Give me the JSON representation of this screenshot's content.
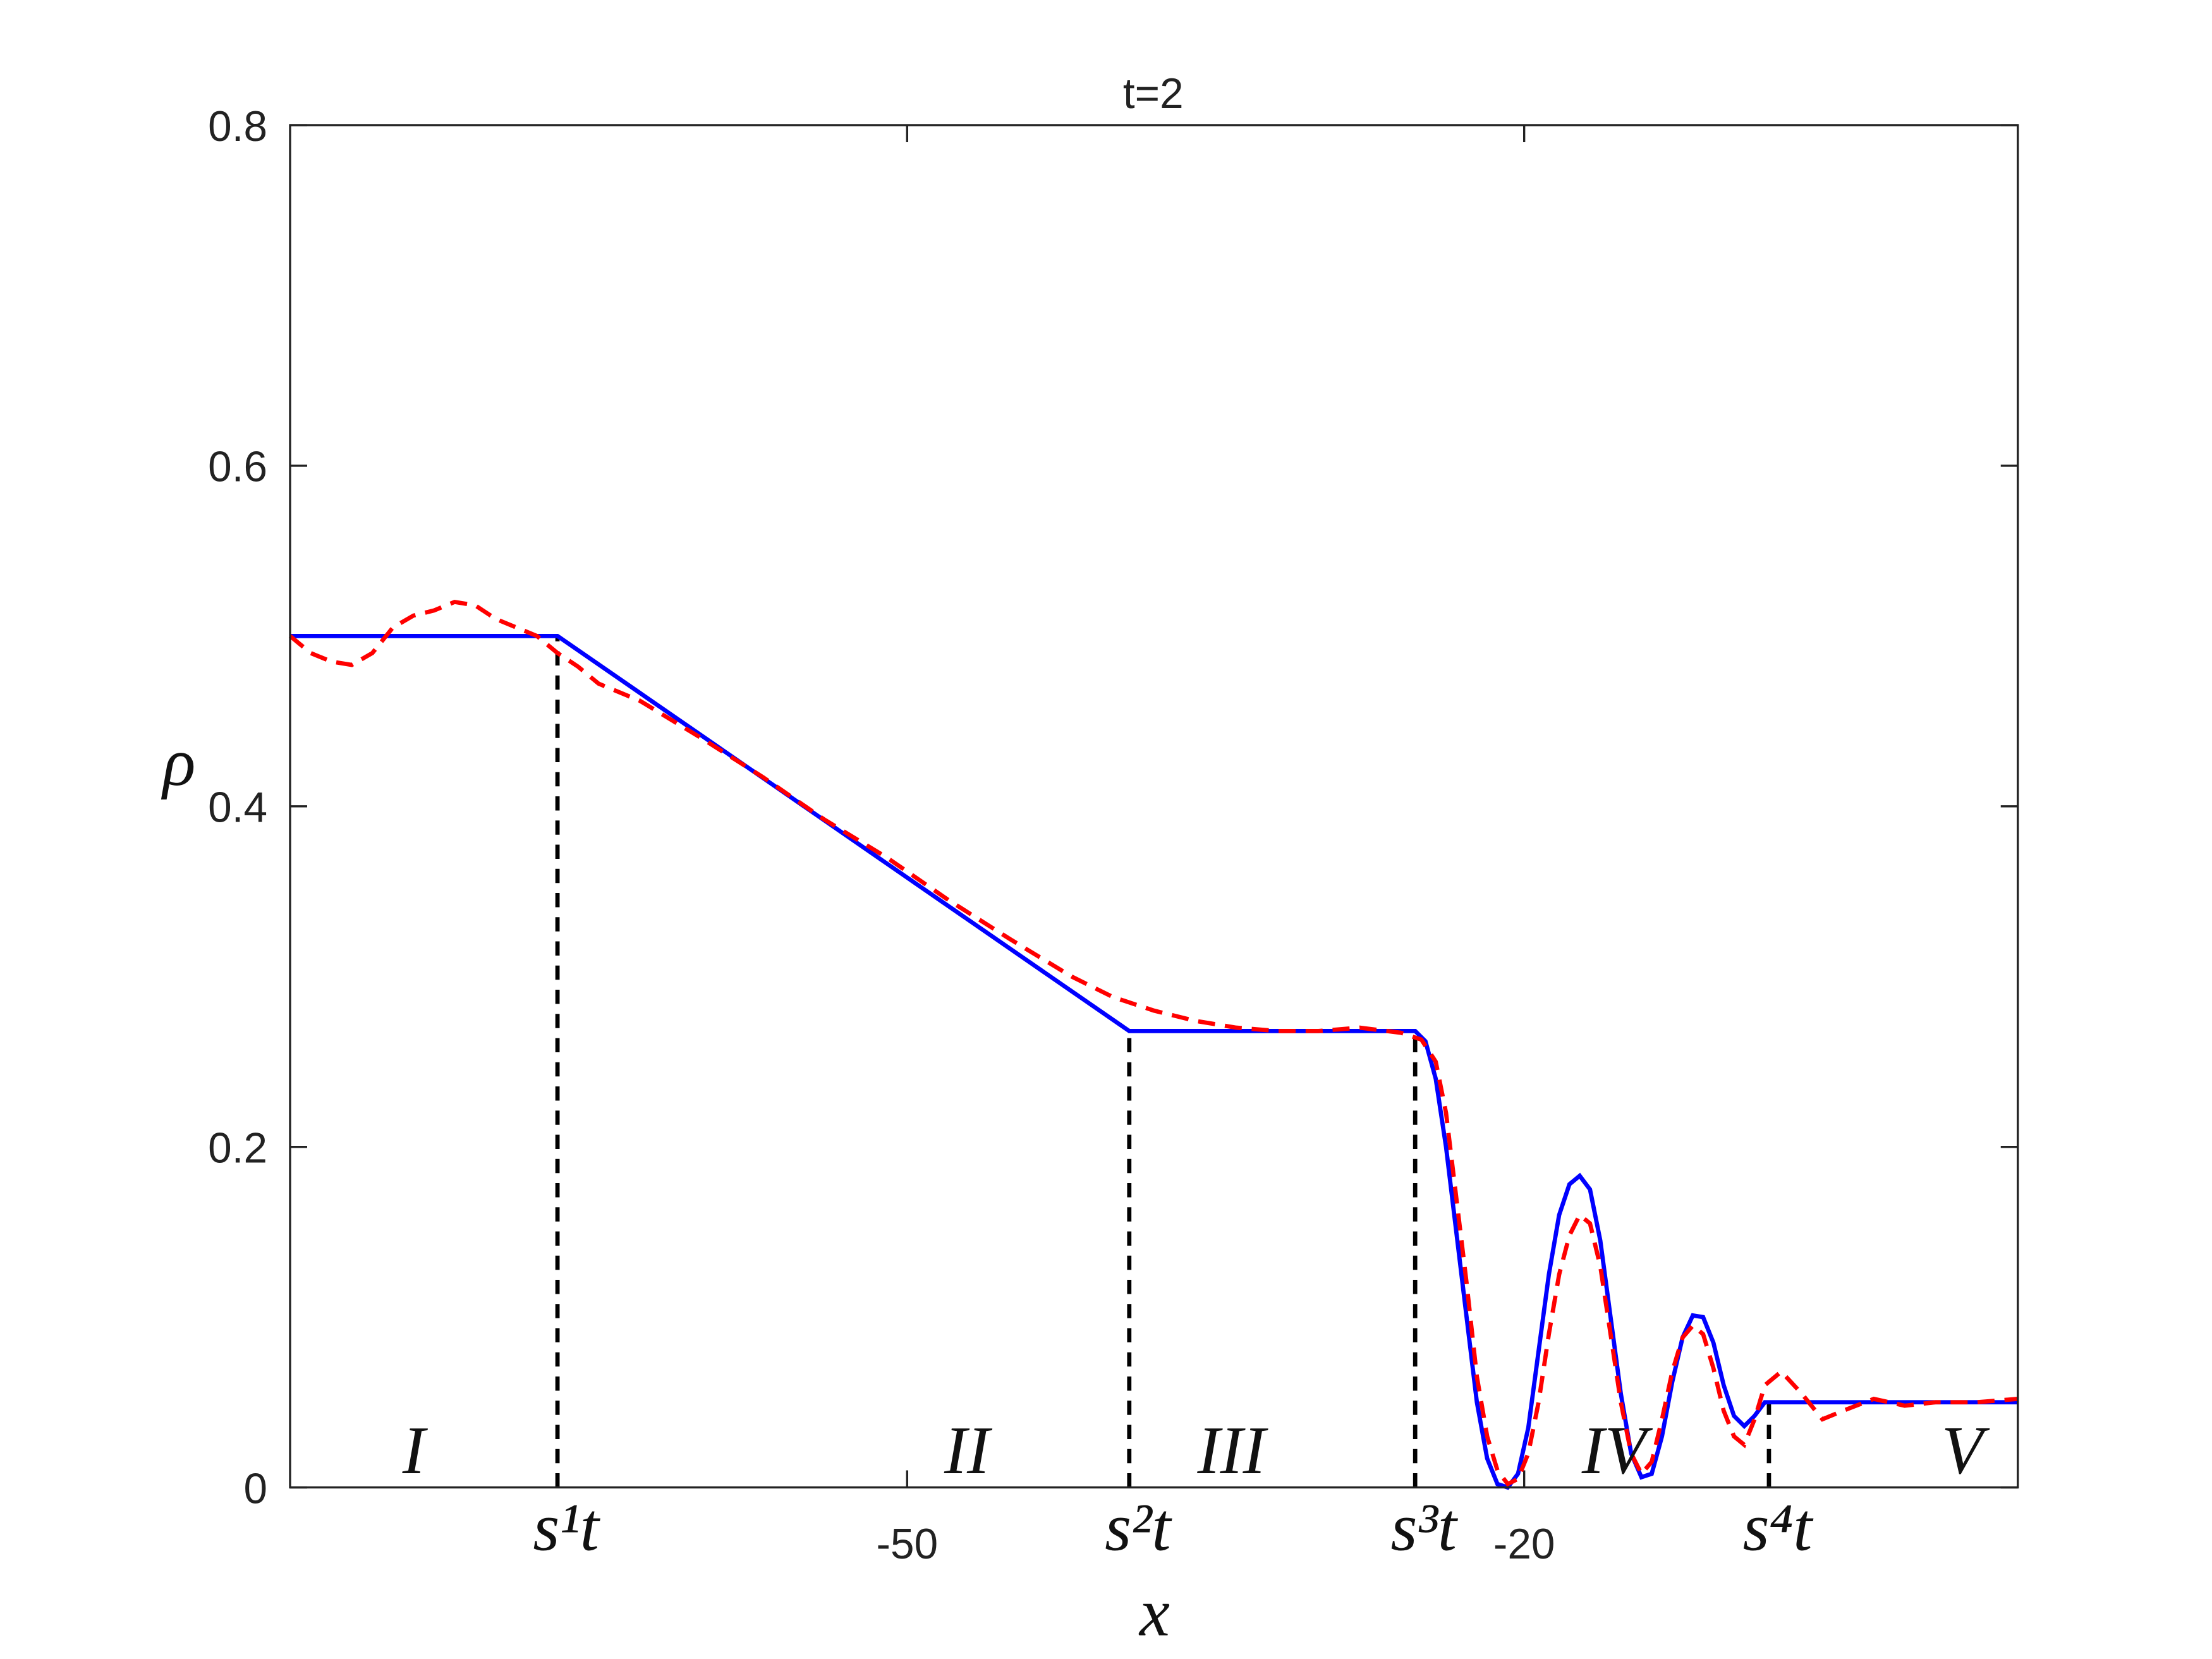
{
  "chart_data": {
    "type": "line",
    "title": "t=2",
    "xlabel": "x",
    "ylabel": "ρ",
    "xlim": [
      -80,
      4
    ],
    "ylim": [
      0,
      0.8
    ],
    "xticks": [
      -50,
      -20
    ],
    "yticks": [
      0,
      0.2,
      0.4,
      0.6,
      0.8
    ],
    "series": [
      {
        "color": "#0000ff",
        "style": "solid",
        "x": [
          -80,
          -67,
          -39.2,
          -25.3,
          -24.8,
          -24.3,
          -23.8,
          -23.3,
          -22.8,
          -22.3,
          -21.8,
          -21.3,
          -20.8,
          -20.3,
          -19.8,
          -19.3,
          -18.8,
          -18.3,
          -17.8,
          -17.3,
          -16.8,
          -16.3,
          -15.8,
          -15.3,
          -14.8,
          -14.3,
          -13.8,
          -13.3,
          -12.8,
          -12.3,
          -11.8,
          -11.3,
          -10.8,
          -10.3,
          -9.8,
          -9.3,
          -8.8,
          -8.3,
          4
        ],
        "values": [
          0.5,
          0.5,
          0.268,
          0.268,
          0.262,
          0.24,
          0.2,
          0.15,
          0.1,
          0.05,
          0.017,
          0.002,
          0.0,
          0.008,
          0.035,
          0.08,
          0.125,
          0.16,
          0.178,
          0.183,
          0.175,
          0.145,
          0.1,
          0.055,
          0.02,
          0.006,
          0.008,
          0.03,
          0.062,
          0.088,
          0.101,
          0.1,
          0.085,
          0.06,
          0.042,
          0.036,
          0.042,
          0.05,
          0.05
        ]
      },
      {
        "color": "#ff0000",
        "style": "dashed",
        "x": [
          -80,
          -79,
          -78,
          -77,
          -76,
          -75,
          -74,
          -73,
          -72,
          -71,
          -70,
          -69,
          -68,
          -67,
          -66,
          -65,
          -63,
          -60,
          -57,
          -54,
          -51,
          -48,
          -45,
          -42,
          -40,
          -38,
          -36,
          -34,
          -32,
          -30,
          -28,
          -26,
          -25,
          -24.3,
          -23.8,
          -23.3,
          -22.8,
          -22.3,
          -21.8,
          -21.3,
          -20.8,
          -20.3,
          -19.8,
          -19.3,
          -18.8,
          -18.3,
          -17.8,
          -17.3,
          -16.8,
          -16.3,
          -15.8,
          -15.3,
          -14.8,
          -14.3,
          -13.8,
          -13.3,
          -12.8,
          -12.3,
          -11.8,
          -11.3,
          -10.8,
          -10.3,
          -9.8,
          -9.3,
          -8.8,
          -8.3,
          -7.5,
          -6.5,
          -5.5,
          -4.5,
          -3,
          -1.5,
          0,
          2,
          4
        ],
        "values": [
          0.5,
          0.49,
          0.485,
          0.483,
          0.49,
          0.505,
          0.512,
          0.515,
          0.52,
          0.518,
          0.51,
          0.505,
          0.5,
          0.49,
          0.482,
          0.472,
          0.462,
          0.44,
          0.417,
          0.392,
          0.37,
          0.345,
          0.322,
          0.3,
          0.288,
          0.28,
          0.274,
          0.27,
          0.268,
          0.268,
          0.27,
          0.267,
          0.263,
          0.25,
          0.22,
          0.17,
          0.12,
          0.065,
          0.03,
          0.01,
          0.002,
          0.005,
          0.02,
          0.05,
          0.09,
          0.125,
          0.148,
          0.16,
          0.155,
          0.13,
          0.09,
          0.05,
          0.02,
          0.008,
          0.015,
          0.04,
          0.068,
          0.088,
          0.095,
          0.09,
          0.07,
          0.045,
          0.03,
          0.025,
          0.04,
          0.06,
          0.068,
          0.055,
          0.04,
          0.045,
          0.052,
          0.048,
          0.05,
          0.05,
          0.052
        ]
      }
    ],
    "markers": [
      {
        "x": -67,
        "y": 0.5,
        "label": "s¹t"
      },
      {
        "x": -39.2,
        "y": 0.268,
        "label": "s²t"
      },
      {
        "x": -25.3,
        "y": 0.268,
        "label": "s³t"
      },
      {
        "x": -8.1,
        "y": 0.05,
        "label": "s⁴t"
      }
    ],
    "regions": [
      "I",
      "II",
      "III",
      "IV",
      "V"
    ]
  }
}
